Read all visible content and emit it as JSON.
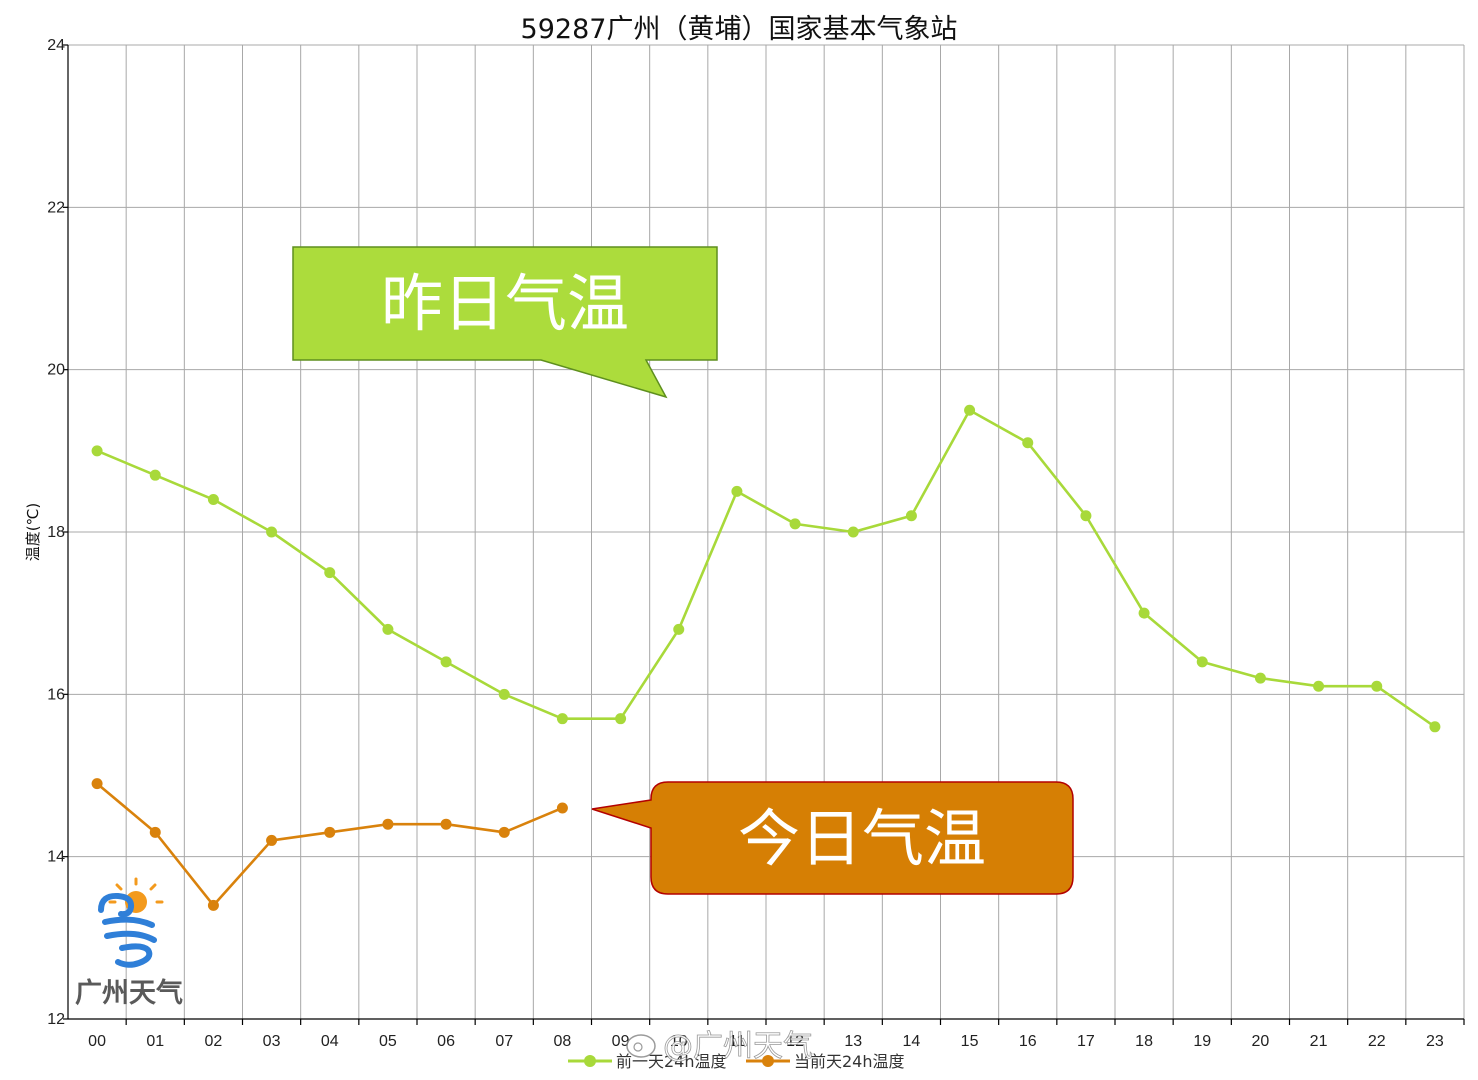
{
  "colors": {
    "yesterday_series": "#a8d93a",
    "today_series": "#d9820c",
    "callout_green_fill": "#acdc3c",
    "callout_green_border": "#5e8f1e",
    "callout_orange_fill": "#d67f04",
    "callout_orange_border": "#b30000",
    "grid": "#a8a8a8"
  },
  "callouts": {
    "yesterday": "昨日气温",
    "today": "今日气温"
  },
  "logo": {
    "text": "广州天气",
    "icon": "sun-swirl-logo-icon"
  },
  "watermark": "@广州天气",
  "chart_data": {
    "type": "line",
    "title": "59287广州（黄埔）国家基本气象站",
    "xlabel": "",
    "ylabel": "温度(℃)",
    "ylim": [
      12,
      24
    ],
    "yticks": [
      12,
      14,
      16,
      18,
      20,
      22,
      24
    ],
    "grid": true,
    "legend_position": "bottom",
    "categories": [
      "00",
      "01",
      "02",
      "03",
      "04",
      "05",
      "06",
      "07",
      "08",
      "09",
      "10",
      "11",
      "12",
      "13",
      "14",
      "15",
      "16",
      "17",
      "18",
      "19",
      "20",
      "21",
      "22",
      "23"
    ],
    "series": [
      {
        "name": "前一天24h温度",
        "color": "#a8d93a",
        "values": [
          19.0,
          18.7,
          18.4,
          18.0,
          17.5,
          16.8,
          16.4,
          16.0,
          15.7,
          15.7,
          16.8,
          18.5,
          18.1,
          18.0,
          18.2,
          19.5,
          19.1,
          18.2,
          17.0,
          16.4,
          16.2,
          16.1,
          16.1,
          15.6
        ]
      },
      {
        "name": "当前天24h温度",
        "color": "#d9820c",
        "values": [
          14.9,
          14.3,
          13.4,
          14.2,
          14.3,
          14.4,
          14.4,
          14.3,
          14.6,
          null,
          null,
          null,
          null,
          null,
          null,
          null,
          null,
          null,
          null,
          null,
          null,
          null,
          null,
          null
        ]
      }
    ]
  }
}
